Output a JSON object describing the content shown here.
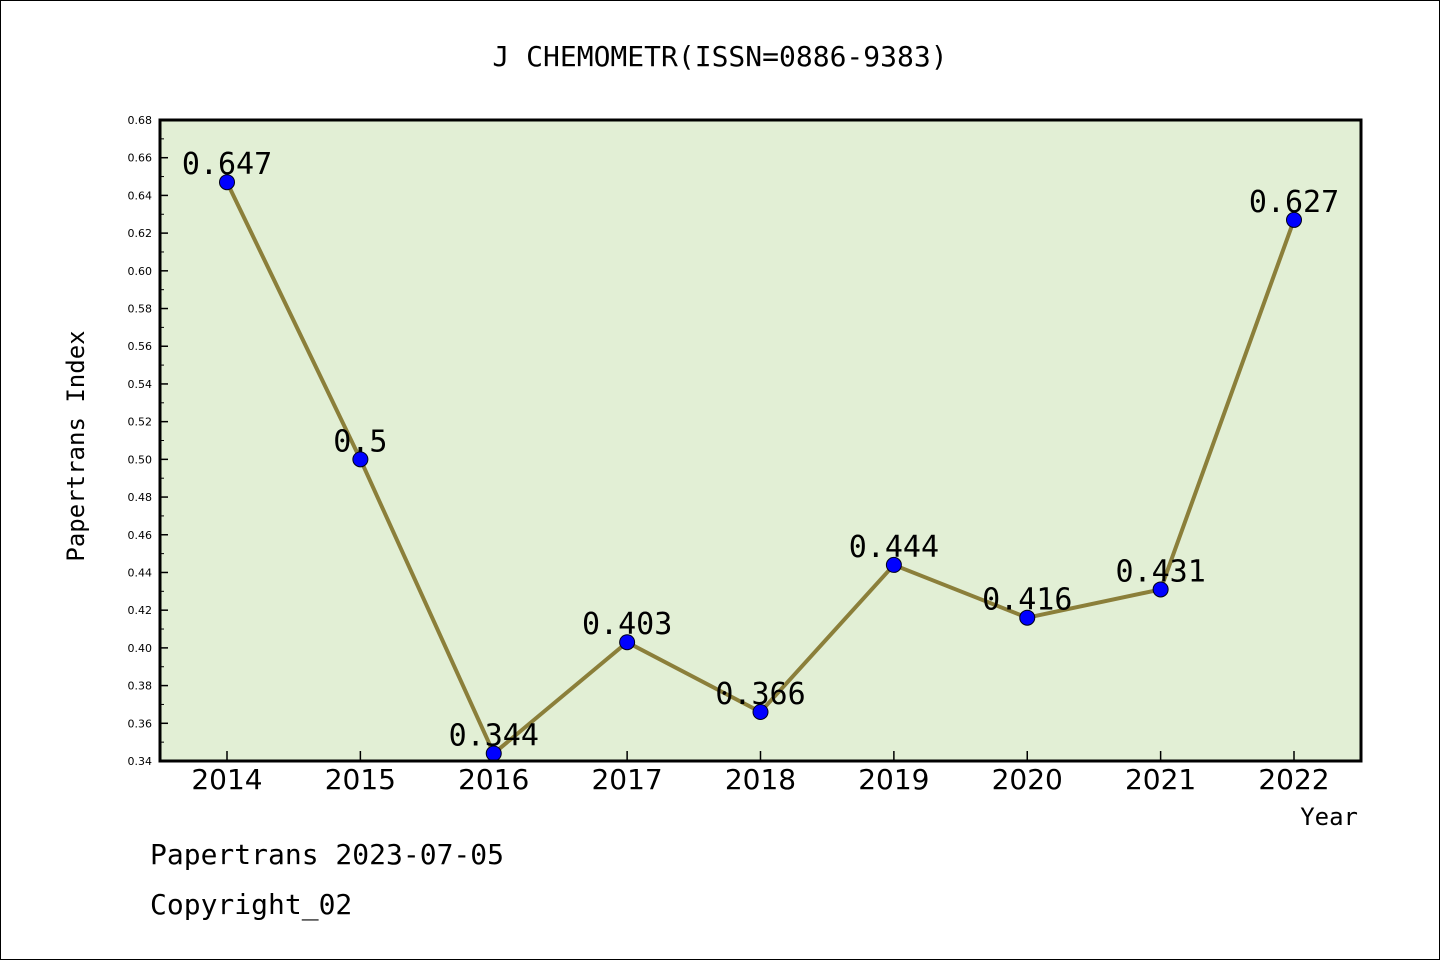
{
  "chart_data": {
    "type": "line",
    "title": "J CHEMOMETR(ISSN=0886-9383)",
    "xlabel": "Year",
    "ylabel": "Papertrans Index",
    "categories": [
      "2014",
      "2015",
      "2016",
      "2017",
      "2018",
      "2019",
      "2020",
      "2021",
      "2022"
    ],
    "series": [
      {
        "values": [
          0.647,
          0.5,
          0.344,
          0.403,
          0.366,
          0.444,
          0.416,
          0.431,
          0.627
        ]
      }
    ],
    "data_labels": [
      "0.647",
      "0.5",
      "0.344",
      "0.403",
      "0.366",
      "0.444",
      "0.416",
      "0.431",
      "0.627"
    ],
    "ylim": [
      0.34,
      0.68
    ],
    "yticks": [
      0.34,
      0.36,
      0.38,
      0.4,
      0.42,
      0.44,
      0.46,
      0.48,
      0.5,
      0.52,
      0.54,
      0.56,
      0.58,
      0.6,
      0.62,
      0.64,
      0.66,
      0.68
    ],
    "ytick_labels": [
      "0.34",
      "0.36",
      "0.38",
      "0.40",
      "0.42",
      "0.44",
      "0.46",
      "0.48",
      "0.50",
      "0.52",
      "0.54",
      "0.56",
      "0.58",
      "0.60",
      "0.62",
      "0.64",
      "0.66",
      "0.68"
    ],
    "grid": false,
    "colors": {
      "plot_background": "#e2efd5",
      "line": "#8b7f3a",
      "marker": "#0000ff"
    }
  },
  "footer": {
    "source": "Papertrans 2023-07-05",
    "copyright": "Copyright_02"
  }
}
